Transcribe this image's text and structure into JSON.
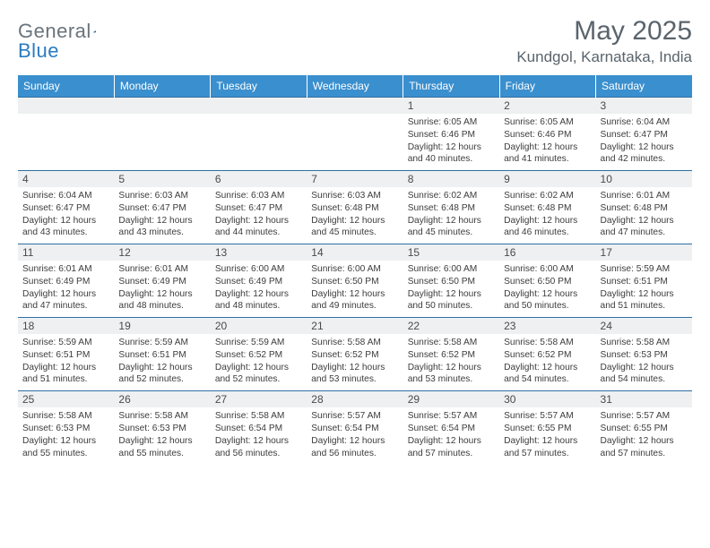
{
  "logo": {
    "text1": "General",
    "text2": "Blue"
  },
  "title": "May 2025",
  "location": "Kundgol, Karnataka, India",
  "colors": {
    "header_bg": "#3a8fce",
    "header_text": "#ffffff",
    "row_divider": "#2f6fa3",
    "daynum_bg": "#eef0f1",
    "body_text": "#3c3c3c",
    "title_text": "#5a646c"
  },
  "dow": [
    "Sunday",
    "Monday",
    "Tuesday",
    "Wednesday",
    "Thursday",
    "Friday",
    "Saturday"
  ],
  "weeks": [
    [
      null,
      null,
      null,
      null,
      {
        "n": "1",
        "sr": "6:05 AM",
        "ss": "6:46 PM",
        "dl": "12 hours and 40 minutes."
      },
      {
        "n": "2",
        "sr": "6:05 AM",
        "ss": "6:46 PM",
        "dl": "12 hours and 41 minutes."
      },
      {
        "n": "3",
        "sr": "6:04 AM",
        "ss": "6:47 PM",
        "dl": "12 hours and 42 minutes."
      }
    ],
    [
      {
        "n": "4",
        "sr": "6:04 AM",
        "ss": "6:47 PM",
        "dl": "12 hours and 43 minutes."
      },
      {
        "n": "5",
        "sr": "6:03 AM",
        "ss": "6:47 PM",
        "dl": "12 hours and 43 minutes."
      },
      {
        "n": "6",
        "sr": "6:03 AM",
        "ss": "6:47 PM",
        "dl": "12 hours and 44 minutes."
      },
      {
        "n": "7",
        "sr": "6:03 AM",
        "ss": "6:48 PM",
        "dl": "12 hours and 45 minutes."
      },
      {
        "n": "8",
        "sr": "6:02 AM",
        "ss": "6:48 PM",
        "dl": "12 hours and 45 minutes."
      },
      {
        "n": "9",
        "sr": "6:02 AM",
        "ss": "6:48 PM",
        "dl": "12 hours and 46 minutes."
      },
      {
        "n": "10",
        "sr": "6:01 AM",
        "ss": "6:48 PM",
        "dl": "12 hours and 47 minutes."
      }
    ],
    [
      {
        "n": "11",
        "sr": "6:01 AM",
        "ss": "6:49 PM",
        "dl": "12 hours and 47 minutes."
      },
      {
        "n": "12",
        "sr": "6:01 AM",
        "ss": "6:49 PM",
        "dl": "12 hours and 48 minutes."
      },
      {
        "n": "13",
        "sr": "6:00 AM",
        "ss": "6:49 PM",
        "dl": "12 hours and 48 minutes."
      },
      {
        "n": "14",
        "sr": "6:00 AM",
        "ss": "6:50 PM",
        "dl": "12 hours and 49 minutes."
      },
      {
        "n": "15",
        "sr": "6:00 AM",
        "ss": "6:50 PM",
        "dl": "12 hours and 50 minutes."
      },
      {
        "n": "16",
        "sr": "6:00 AM",
        "ss": "6:50 PM",
        "dl": "12 hours and 50 minutes."
      },
      {
        "n": "17",
        "sr": "5:59 AM",
        "ss": "6:51 PM",
        "dl": "12 hours and 51 minutes."
      }
    ],
    [
      {
        "n": "18",
        "sr": "5:59 AM",
        "ss": "6:51 PM",
        "dl": "12 hours and 51 minutes."
      },
      {
        "n": "19",
        "sr": "5:59 AM",
        "ss": "6:51 PM",
        "dl": "12 hours and 52 minutes."
      },
      {
        "n": "20",
        "sr": "5:59 AM",
        "ss": "6:52 PM",
        "dl": "12 hours and 52 minutes."
      },
      {
        "n": "21",
        "sr": "5:58 AM",
        "ss": "6:52 PM",
        "dl": "12 hours and 53 minutes."
      },
      {
        "n": "22",
        "sr": "5:58 AM",
        "ss": "6:52 PM",
        "dl": "12 hours and 53 minutes."
      },
      {
        "n": "23",
        "sr": "5:58 AM",
        "ss": "6:52 PM",
        "dl": "12 hours and 54 minutes."
      },
      {
        "n": "24",
        "sr": "5:58 AM",
        "ss": "6:53 PM",
        "dl": "12 hours and 54 minutes."
      }
    ],
    [
      {
        "n": "25",
        "sr": "5:58 AM",
        "ss": "6:53 PM",
        "dl": "12 hours and 55 minutes."
      },
      {
        "n": "26",
        "sr": "5:58 AM",
        "ss": "6:53 PM",
        "dl": "12 hours and 55 minutes."
      },
      {
        "n": "27",
        "sr": "5:58 AM",
        "ss": "6:54 PM",
        "dl": "12 hours and 56 minutes."
      },
      {
        "n": "28",
        "sr": "5:57 AM",
        "ss": "6:54 PM",
        "dl": "12 hours and 56 minutes."
      },
      {
        "n": "29",
        "sr": "5:57 AM",
        "ss": "6:54 PM",
        "dl": "12 hours and 57 minutes."
      },
      {
        "n": "30",
        "sr": "5:57 AM",
        "ss": "6:55 PM",
        "dl": "12 hours and 57 minutes."
      },
      {
        "n": "31",
        "sr": "5:57 AM",
        "ss": "6:55 PM",
        "dl": "12 hours and 57 minutes."
      }
    ]
  ],
  "labels": {
    "sunrise": "Sunrise: ",
    "sunset": "Sunset: ",
    "daylight": "Daylight: "
  }
}
